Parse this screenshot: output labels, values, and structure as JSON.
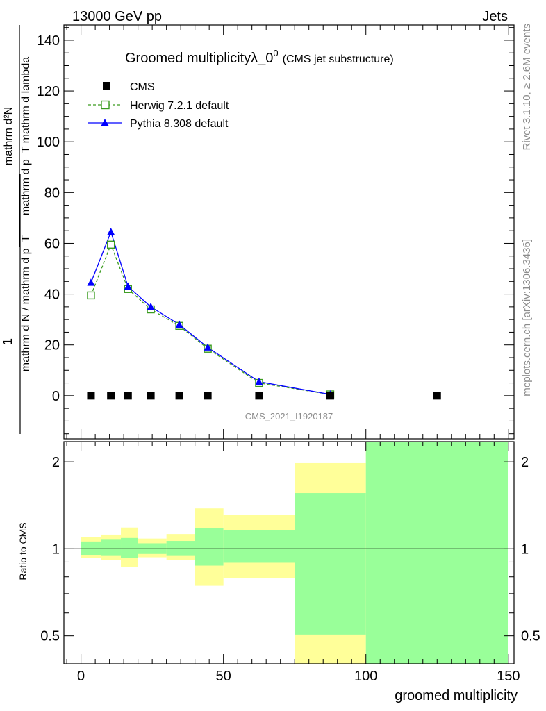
{
  "header": {
    "energy_label": "13000 GeV pp",
    "category_label": "Jets"
  },
  "side_labels": {
    "rivet": "Rivet 3.1.10, ≥ 2.6M events",
    "mcplots": "mcplots.cern.ch [arXiv:1306.3436]"
  },
  "chart_data": [
    {
      "type": "line",
      "title": "Groomed multiplicityλ_0",
      "title_superscript": "0",
      "subtitle": "(CMS jet substructure)",
      "ylabel_numerator": "mathrm d²N",
      "ylabel_denominator": "mathrm d p_T mathrm d lambda",
      "ylabel_prefix_numerator": "1",
      "ylabel_prefix_denominator": "mathrm d N / mathrm d p_T",
      "ylim": [
        -17,
        146
      ],
      "xlim": [
        -6,
        152
      ],
      "yticks": [
        0,
        20,
        40,
        60,
        80,
        100,
        120,
        140
      ],
      "xticks": [
        0,
        50,
        100,
        150
      ],
      "analysis_label": "CMS_2021_I1920187",
      "legend_position": "top-left",
      "series": [
        {
          "name": "CMS",
          "style": "markers",
          "marker": "square",
          "color": "#000000",
          "x": [
            3.5,
            10.5,
            16.5,
            24.5,
            34.5,
            44.5,
            62.5,
            87.5,
            125
          ],
          "y": [
            0,
            0,
            0,
            0,
            0,
            0,
            0,
            0,
            0
          ]
        },
        {
          "name": "Herwig 7.2.1 default",
          "style": "dashed",
          "marker": "open-square",
          "color": "#3a9b1f",
          "x": [
            3.5,
            10.5,
            16.5,
            24.5,
            34.5,
            44.5,
            62.5,
            87.5
          ],
          "y": [
            39.5,
            59.5,
            42,
            34,
            27.5,
            18.5,
            5,
            0.5
          ]
        },
        {
          "name": "Pythia 8.308 default",
          "style": "solid",
          "marker": "triangle",
          "color": "#0000ff",
          "x": [
            3.5,
            10.5,
            16.5,
            24.5,
            34.5,
            44.5,
            62.5,
            87.5
          ],
          "y": [
            44.5,
            64.5,
            43,
            35,
            28,
            19,
            5.5,
            0.5
          ]
        }
      ]
    },
    {
      "type": "area",
      "ylabel": "Ratio to CMS",
      "xlabel": "groomed multiplicity",
      "xlim": [
        -6,
        152
      ],
      "ylim": [
        0.4,
        2.35
      ],
      "yscale": "log",
      "yticks": [
        0.5,
        1,
        2
      ],
      "xticks": [
        0,
        50,
        100,
        150
      ],
      "reference_line": 1,
      "bands": [
        {
          "x0": 0,
          "x1": 7,
          "yellow": [
            0.93,
            1.1
          ],
          "green": [
            0.95,
            1.06
          ]
        },
        {
          "x0": 7,
          "x1": 14,
          "yellow": [
            0.915,
            1.12
          ],
          "green": [
            0.945,
            1.075
          ]
        },
        {
          "x0": 14,
          "x1": 20,
          "yellow": [
            0.865,
            1.185
          ],
          "green": [
            0.93,
            1.09
          ]
        },
        {
          "x0": 20,
          "x1": 30,
          "yellow": [
            0.935,
            1.085
          ],
          "green": [
            0.96,
            1.045
          ]
        },
        {
          "x0": 30,
          "x1": 40,
          "yellow": [
            0.915,
            1.125
          ],
          "green": [
            0.945,
            1.065
          ]
        },
        {
          "x0": 40,
          "x1": 50,
          "yellow": [
            0.745,
            1.38
          ],
          "green": [
            0.875,
            1.18
          ]
        },
        {
          "x0": 50,
          "x1": 75,
          "yellow": [
            0.79,
            1.31
          ],
          "green": [
            0.895,
            1.16
          ]
        },
        {
          "x0": 75,
          "x1": 100,
          "yellow": [
            0.4,
            1.98
          ],
          "green": [
            0.505,
            1.56
          ]
        },
        {
          "x0": 100,
          "x1": 150,
          "yellow": [
            0.4,
            2.35
          ],
          "green": [
            0.4,
            2.35
          ]
        }
      ],
      "colors": {
        "yellow": "#ffff99",
        "green": "#99ff99"
      }
    }
  ]
}
